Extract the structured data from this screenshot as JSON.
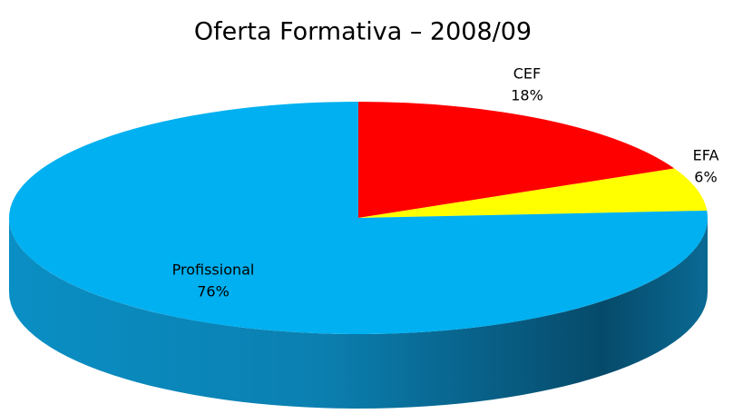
{
  "chart_data": {
    "type": "pie",
    "title": "Oferta Formativa – 2008/09",
    "categories": [
      "CEF",
      "EFA",
      "Profissional"
    ],
    "values": [
      18,
      6,
      76
    ],
    "value_labels": [
      "18%",
      "6%",
      "76%"
    ],
    "colors": [
      "#ff0000",
      "#ffff00",
      "#00b0f0"
    ]
  }
}
